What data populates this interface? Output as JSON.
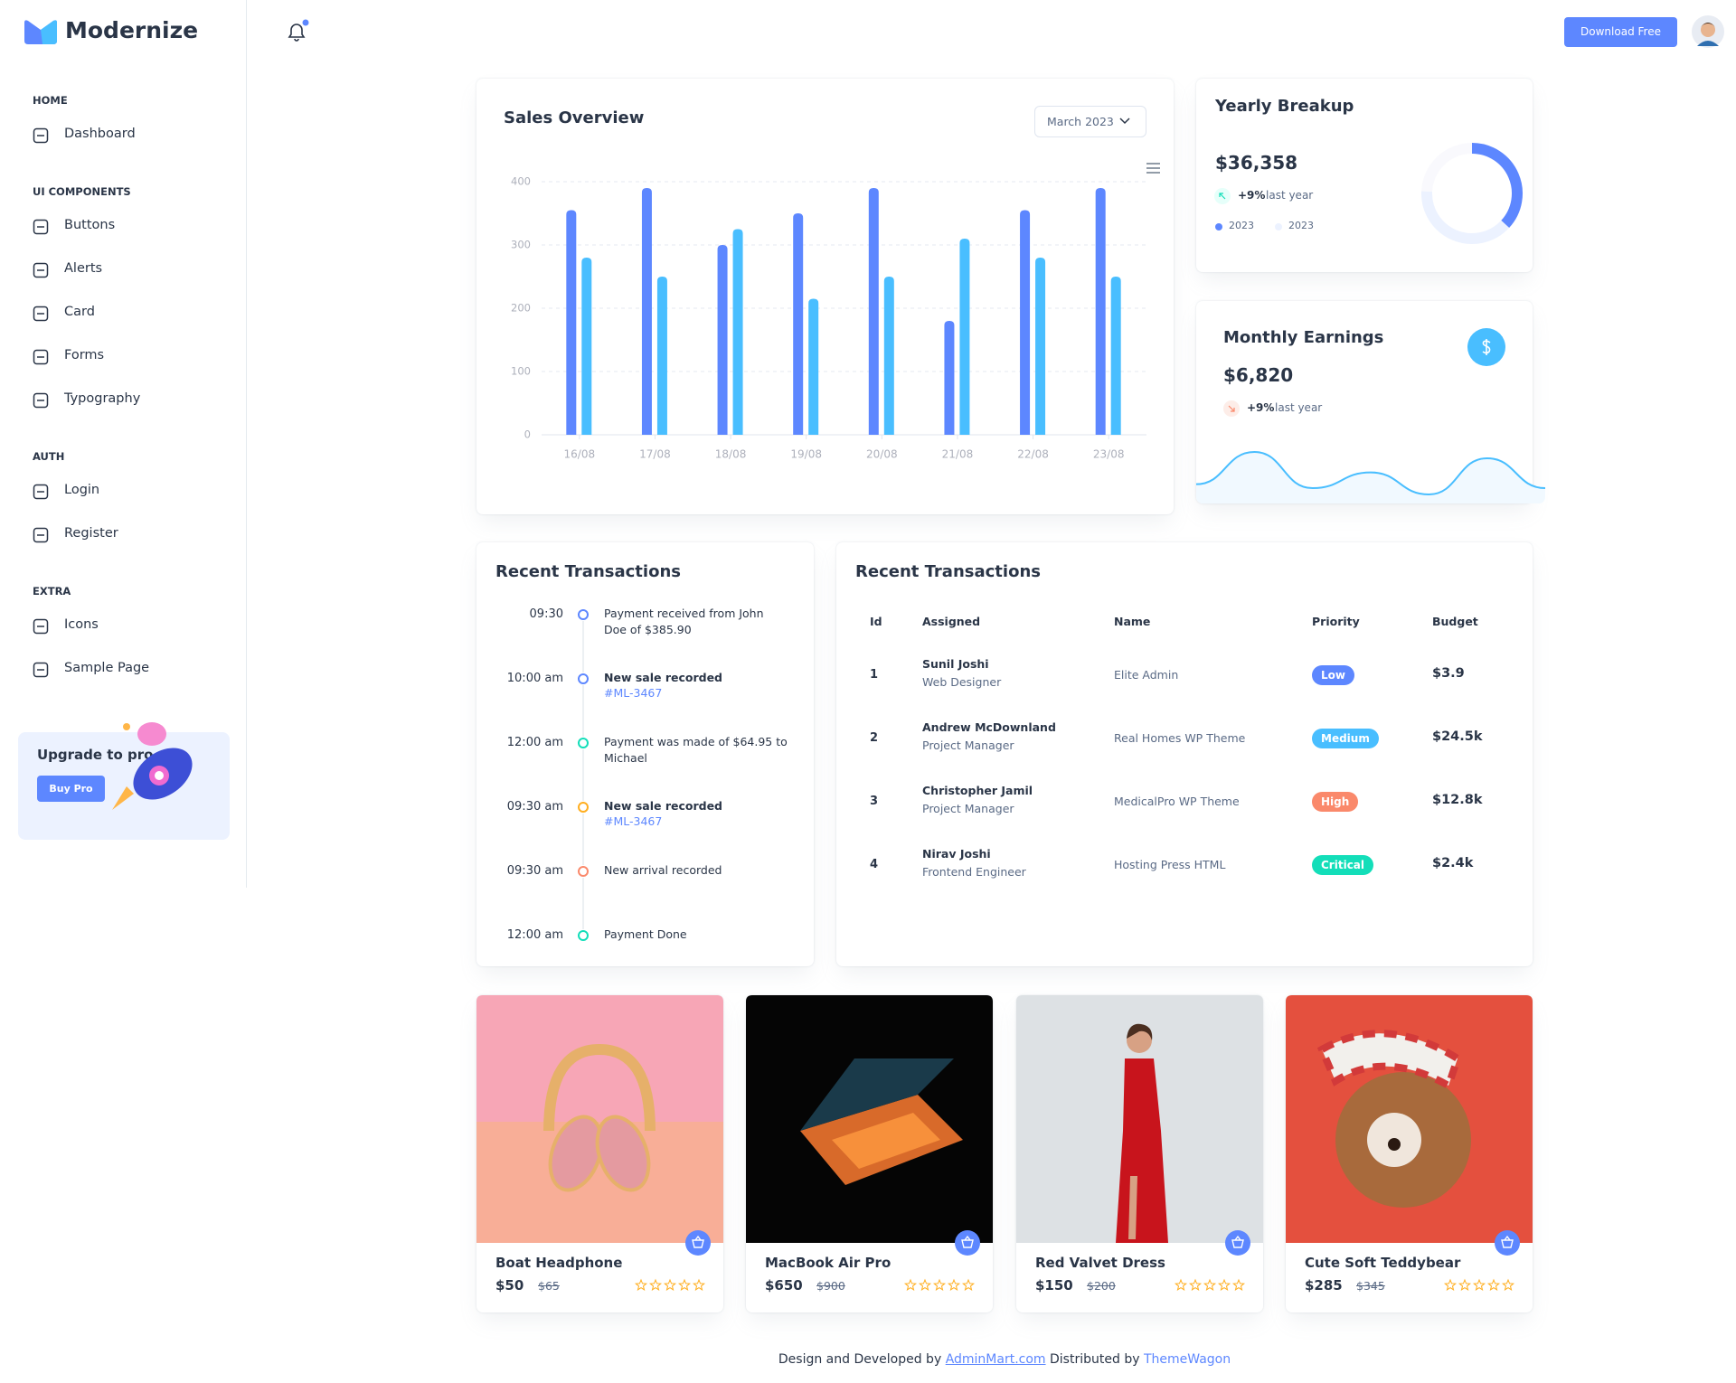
{
  "brand": "Modernize",
  "sidebar": {
    "sections": [
      {
        "title": "HOME",
        "items": [
          "Dashboard"
        ]
      },
      {
        "title": "UI COMPONENTS",
        "items": [
          "Buttons",
          "Alerts",
          "Card",
          "Forms",
          "Typography"
        ]
      },
      {
        "title": "AUTH",
        "items": [
          "Login",
          "Register"
        ]
      },
      {
        "title": "EXTRA",
        "items": [
          "Icons",
          "Sample Page"
        ]
      }
    ],
    "upgrade": {
      "title": "Upgrade to pro",
      "button": "Buy Pro"
    }
  },
  "header": {
    "button": "Download Free"
  },
  "chart_data": [
    {
      "type": "bar",
      "title": "Sales Overview",
      "period": "March 2023",
      "categories": [
        "16/08",
        "17/08",
        "18/08",
        "19/08",
        "20/08",
        "21/08",
        "22/08",
        "23/08"
      ],
      "series": [
        {
          "color": "#5D87FF",
          "values": [
            355,
            390,
            300,
            350,
            390,
            180,
            355,
            390
          ]
        },
        {
          "color": "#49BEFF",
          "values": [
            280,
            250,
            325,
            215,
            250,
            310,
            280,
            250
          ]
        }
      ],
      "ylim": [
        0,
        400
      ],
      "yticks": [
        0,
        100,
        200,
        300,
        400
      ],
      "grid": true
    },
    {
      "type": "donut",
      "title": "Yearly Breakup",
      "total": "$36,358",
      "change": "+9%",
      "change_note": "last year",
      "values": [
        38,
        40,
        25
      ],
      "colors": [
        "#5D87FF",
        "#ECF2FF",
        "#F9F9FD"
      ],
      "legend": [
        {
          "name": "2023",
          "color": "#5D87FF"
        },
        {
          "name": "2023",
          "color": "#ECF2FF"
        }
      ]
    },
    {
      "type": "area",
      "title": "Monthly Earnings",
      "total": "$6,820",
      "change": "+9%",
      "change_note": "last year",
      "values": [
        25,
        66,
        20,
        40,
        12,
        58,
        20
      ],
      "color": "#49BEFF"
    }
  ],
  "timeline": {
    "title": "Recent Transactions",
    "items": [
      {
        "time": "09:30",
        "text": "Payment received from John Doe of $385.90",
        "color": "#5D87FF"
      },
      {
        "time": "10:00 am",
        "text": "New sale recorded",
        "link": "#ML-3467",
        "color": "#5D87FF"
      },
      {
        "time": "12:00 am",
        "text": "Payment was made of $64.95 to Michael",
        "color": "#13DEB9"
      },
      {
        "time": "09:30 am",
        "text": "New sale recorded",
        "link": "#ML-3467",
        "color": "#FFAE1F"
      },
      {
        "time": "09:30 am",
        "text": "New arrival recorded",
        "color": "#FA896B"
      },
      {
        "time": "12:00 am",
        "text": "Payment Done",
        "color": "#13DEB9"
      }
    ]
  },
  "table": {
    "title": "Recent Transactions",
    "columns": [
      "Id",
      "Assigned",
      "Name",
      "Priority",
      "Budget"
    ],
    "rows": [
      {
        "id": 1,
        "assigned": "Sunil Joshi",
        "role": "Web Designer",
        "name": "Elite Admin",
        "priority": "Low",
        "priority_color": "#5D87FF",
        "budget": "$3.9"
      },
      {
        "id": 2,
        "assigned": "Andrew McDownland",
        "role": "Project Manager",
        "name": "Real Homes WP Theme",
        "priority": "Medium",
        "priority_color": "#49BEFF",
        "budget": "$24.5k"
      },
      {
        "id": 3,
        "assigned": "Christopher Jamil",
        "role": "Project Manager",
        "name": "MedicalPro WP Theme",
        "priority": "High",
        "priority_color": "#FA896B",
        "budget": "$12.8k"
      },
      {
        "id": 4,
        "assigned": "Nirav Joshi",
        "role": "Frontend Engineer",
        "name": "Hosting Press HTML",
        "priority": "Critical",
        "priority_color": "#13DEB9",
        "budget": "$2.4k"
      }
    ]
  },
  "products": [
    {
      "name": "Boat Headphone",
      "price": "$50",
      "old_price": "$65"
    },
    {
      "name": "MacBook Air Pro",
      "price": "$650",
      "old_price": "$900"
    },
    {
      "name": "Red Valvet Dress",
      "price": "$150",
      "old_price": "$200"
    },
    {
      "name": "Cute Soft Teddybear",
      "price": "$285",
      "old_price": "$345"
    }
  ],
  "footer": {
    "text1": "Design and Developed by",
    "link1": "AdminMart.com",
    "text2": "Distributed by",
    "link2": "ThemeWagon"
  }
}
